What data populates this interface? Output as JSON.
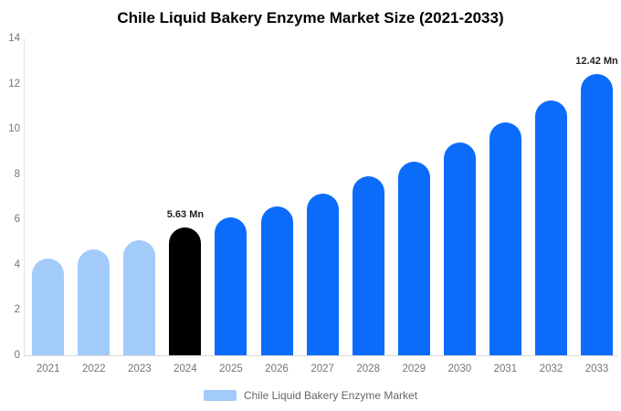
{
  "chart_data": {
    "type": "bar",
    "title": "Chile Liquid Bakery Enzyme Market Size (2021-2033)",
    "categories": [
      "2021",
      "2022",
      "2023",
      "2024",
      "2025",
      "2026",
      "2027",
      "2028",
      "2029",
      "2030",
      "2031",
      "2032",
      "2033"
    ],
    "values": [
      4.28,
      4.68,
      5.08,
      5.63,
      6.08,
      6.57,
      7.15,
      7.9,
      8.55,
      9.4,
      10.28,
      11.25,
      12.42
    ],
    "unit_suffix": "Mn",
    "bar_colors": [
      "#a2cbfa",
      "#a2cbfa",
      "#a2cbfa",
      "#000000",
      "#0b6cfb",
      "#0b6cfb",
      "#0b6cfb",
      "#0b6cfb",
      "#0b6cfb",
      "#0b6cfb",
      "#0b6cfb",
      "#0b6cfb",
      "#0b6cfb"
    ],
    "annotations": [
      {
        "category": "2024",
        "text": "5.63 Mn"
      },
      {
        "category": "2033",
        "text": "12.42 Mn"
      }
    ],
    "xlabel": "",
    "ylabel": "",
    "ylim": [
      0,
      14
    ],
    "yticks": [
      0,
      2,
      4,
      6,
      8,
      10,
      12,
      14
    ],
    "grid": false,
    "legend_position": "bottom",
    "legend": [
      {
        "label": "Chile Liquid Bakery Enzyme Market",
        "color": "#a2cbfa"
      }
    ],
    "colors": {
      "highlight_bar": "#000000",
      "series_bar": "#0b6cfb",
      "historic_bar": "#a2cbfa",
      "axis_label": "#757575",
      "annotation_text": "#222222",
      "title_text": "#000000"
    }
  }
}
